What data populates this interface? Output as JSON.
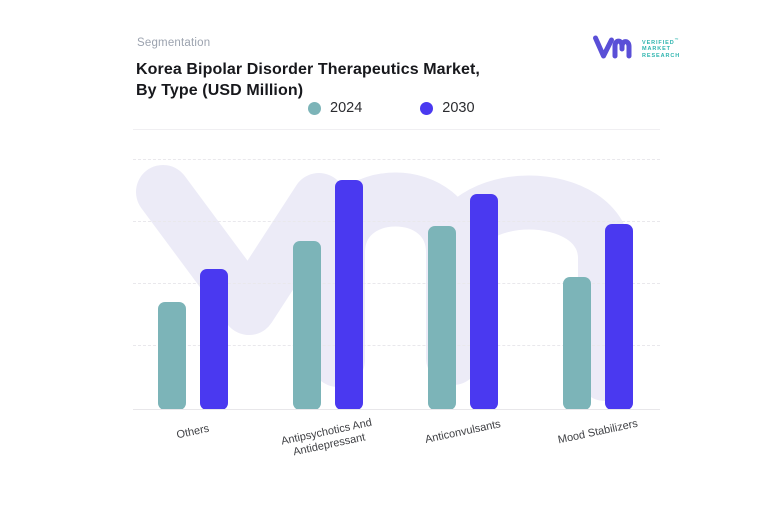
{
  "header": {
    "eyebrow": "Segmentation",
    "title_line1": "Korea Bipolar Disorder Therapeutics Market,",
    "title_line2": "By Type (USD Million)"
  },
  "logo": {
    "line1": "VERIFIED",
    "tm": "™",
    "line2": "MARKET",
    "line3": "RESEARCH",
    "glyph_color": "#5a4fd7",
    "text_color": "#2fb5af"
  },
  "legend": {
    "items": [
      {
        "label": "2024",
        "color": "#7cb4b8"
      },
      {
        "label": "2030",
        "color": "#4a39f0"
      }
    ]
  },
  "chart_data": {
    "type": "bar",
    "title": "Korea Bipolar Disorder Therapeutics Market, By Type (USD Million)",
    "unit": "USD Million",
    "categories": [
      "Others",
      "Antipsychotics And Antidepressant",
      "Anticonvulsants",
      "Mood Stabilizers"
    ],
    "series": [
      {
        "name": "2024",
        "color": "#7cb4b8",
        "values_relative_gridline_units": [
          1.73,
          2.71,
          2.95,
          2.13
        ],
        "height_pct_of_plot": [
          38.6,
          60.4,
          65.7,
          47.5
        ]
      },
      {
        "name": "2030",
        "color": "#4a39f0",
        "values_relative_gridline_units": [
          2.26,
          3.68,
          3.46,
          2.98
        ],
        "height_pct_of_plot": [
          50.4,
          82.1,
          77.1,
          66.4
        ]
      }
    ],
    "y_axis": {
      "labeled": false,
      "tick_labels": [],
      "gridlines_pct_from_top": [
        10.4,
        32.5,
        54.6,
        76.8
      ]
    },
    "x_axis": {
      "label_rotation_deg": -12
    },
    "legend_position": "top-center",
    "grid": "dashed-horizontal",
    "watermark": "vm-monogram",
    "watermark_color": "#ecebf7",
    "baseline_color": "#e8e7ea"
  }
}
